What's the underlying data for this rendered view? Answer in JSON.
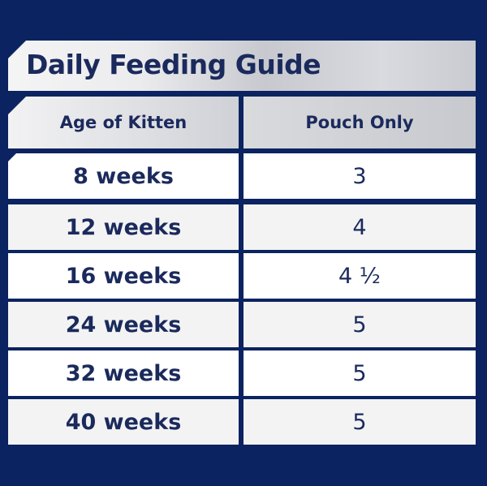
{
  "guide": {
    "title": "Daily Feeding Guide",
    "columns": {
      "age": "Age of Kitten",
      "pouch": "Pouch Only"
    },
    "rows": [
      {
        "age": "8 weeks",
        "pouch": "3"
      },
      {
        "age": "12 weeks",
        "pouch": "4"
      },
      {
        "age": "16 weeks",
        "pouch": "4 ½"
      },
      {
        "age": "24 weeks",
        "pouch": "5"
      },
      {
        "age": "32 weeks",
        "pouch": "5"
      },
      {
        "age": "40 weeks",
        "pouch": "5"
      }
    ]
  },
  "colors": {
    "background": "#0b2360",
    "text": "#1b2a5c",
    "header_silver": "#c7c9ce"
  }
}
